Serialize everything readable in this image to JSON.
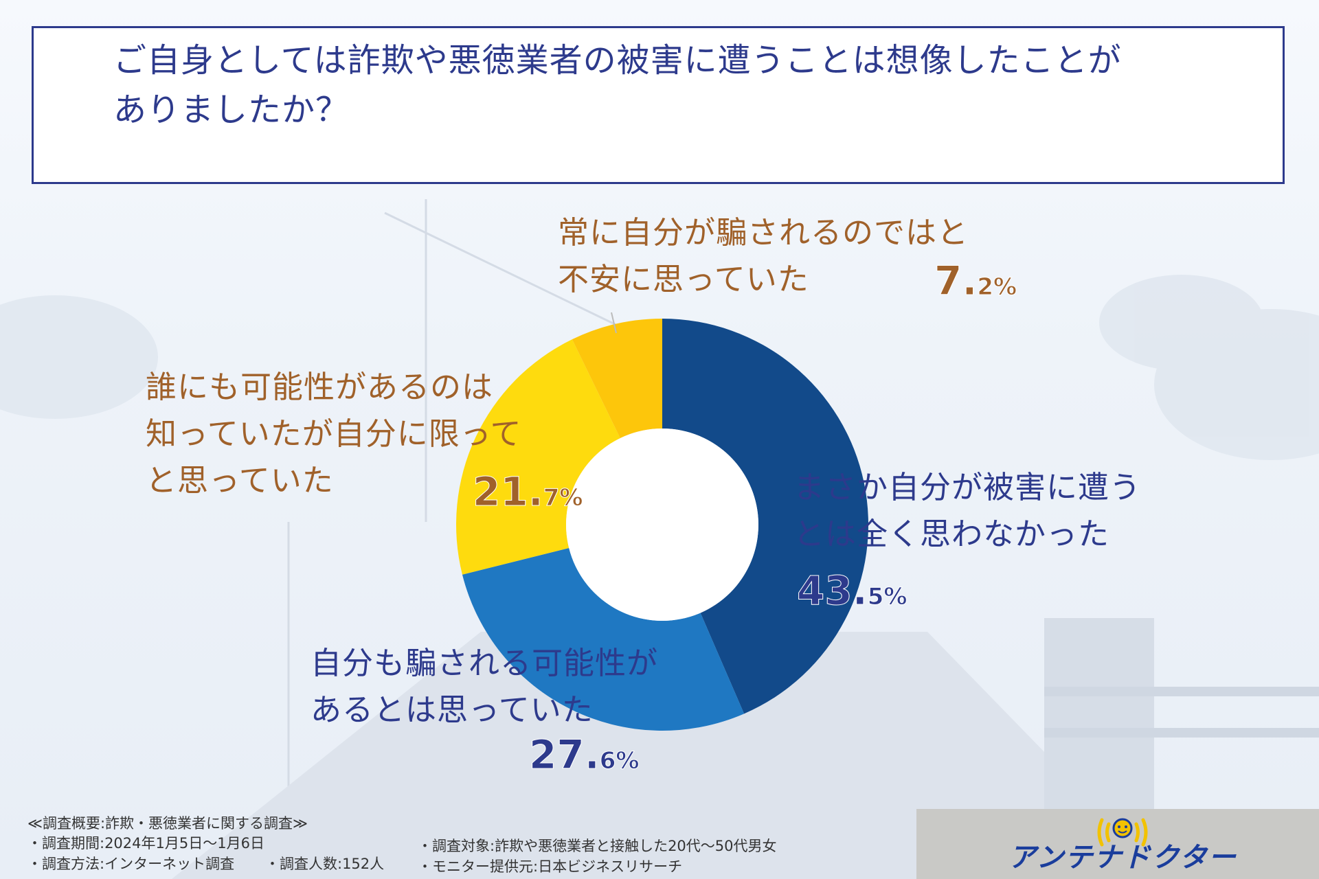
{
  "question": {
    "line1": "ご自身としては詐欺や悪徳業者の被害に遭うことは想像したことが",
    "line2": "ありましたか？"
  },
  "chart_data": {
    "type": "pie",
    "categories": [
      "まさか自分が被害に遭うとは全く思わなかった",
      "自分も騙される可能性があるとは思っていた",
      "誰にも可能性があるのは知っていたが自分に限ってと思っていた",
      "常に自分が騙されるのではと不安に思っていた"
    ],
    "values": [
      43.5,
      27.6,
      21.7,
      7.2
    ],
    "colors": [
      "#124a8a",
      "#1f78c2",
      "#fedb0e",
      "#fdc60b"
    ],
    "title": "",
    "donut": true
  },
  "labels": {
    "s0": {
      "line1": "まさか自分が被害に遭う",
      "line2": "とは全く思わなかった",
      "pct_int": "43.",
      "pct_dec": "5%"
    },
    "s1": {
      "line1": "自分も騙される可能性が",
      "line2": "あるとは思っていた",
      "pct_int": "27.",
      "pct_dec": "6%"
    },
    "s2": {
      "line1": "誰にも可能性があるのは",
      "line2": "知っていたが自分に限って",
      "line3": "と思っていた",
      "pct_int": "21.",
      "pct_dec": "7%"
    },
    "s3": {
      "line1": "常に自分が騙されるのではと",
      "line2": "不安に思っていた",
      "pct_int": "7.",
      "pct_dec": "2%"
    }
  },
  "footer": {
    "title": "≪調査概要:詐欺・悪徳業者に関する調査≫",
    "period": "・調査期間:2024年1月5日～1月6日",
    "method": "・調査方法:インターネット調査",
    "count": "・調査人数:152人",
    "target": "・調査対象:詐欺や悪徳業者と接触した20代～50代男女",
    "provider": "・モニター提供元:日本ビジネスリサーチ"
  },
  "logo": {
    "text": "アンテナドクター"
  }
}
